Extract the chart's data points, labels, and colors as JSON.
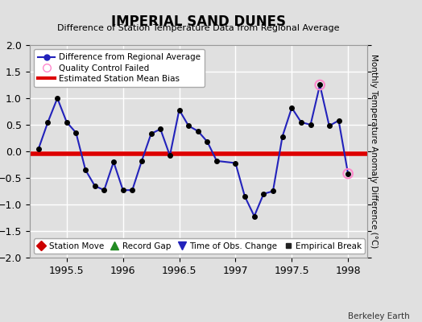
{
  "title": "IMPERIAL SAND DUNES",
  "subtitle": "Difference of Station Temperature Data from Regional Average",
  "ylabel": "Monthly Temperature Anomaly Difference (°C)",
  "xlim": [
    1995.17,
    1998.17
  ],
  "ylim": [
    -2,
    2
  ],
  "yticks": [
    -2,
    -1.5,
    -1,
    -0.5,
    0,
    0.5,
    1,
    1.5,
    2
  ],
  "xticks": [
    1995.5,
    1996.0,
    1996.5,
    1997.0,
    1997.5,
    1998.0
  ],
  "xtick_labels": [
    "1995.5",
    "1996",
    "1996.5",
    "1997",
    "1997.5",
    "1998"
  ],
  "background_color": "#e0e0e0",
  "grid_color": "#ffffff",
  "bias_line_y": -0.04,
  "bias_line_color": "#dd0000",
  "line_color": "#2222bb",
  "marker_color": "#000000",
  "qc_fail_color": "#ff88cc",
  "watermark": "Berkeley Earth",
  "x_data": [
    1995.25,
    1995.333,
    1995.417,
    1995.5,
    1995.583,
    1995.667,
    1995.75,
    1995.833,
    1995.917,
    1996.0,
    1996.083,
    1996.167,
    1996.25,
    1996.333,
    1996.417,
    1996.5,
    1996.583,
    1996.667,
    1996.75,
    1996.833,
    1997.0,
    1997.083,
    1997.167,
    1997.25,
    1997.333,
    1997.417,
    1997.5,
    1997.583,
    1997.667,
    1997.75,
    1997.833,
    1997.917,
    1998.0
  ],
  "y_data": [
    0.05,
    0.55,
    1.0,
    0.55,
    0.35,
    -0.35,
    -0.65,
    -0.73,
    -0.2,
    -0.73,
    -0.73,
    -0.18,
    0.33,
    0.42,
    -0.08,
    0.78,
    0.48,
    0.38,
    0.18,
    -0.18,
    -0.22,
    -0.85,
    -1.22,
    -0.8,
    -0.75,
    0.28,
    0.82,
    0.55,
    0.5,
    1.25,
    0.48,
    0.58,
    -0.42
  ],
  "qc_fail_indices": [
    29,
    32
  ],
  "legend2_items": [
    {
      "label": "Station Move",
      "color": "#cc0000",
      "marker": "D",
      "markersize": 6
    },
    {
      "label": "Record Gap",
      "color": "#228B22",
      "marker": "^",
      "markersize": 7
    },
    {
      "label": "Time of Obs. Change",
      "color": "#2222bb",
      "marker": "v",
      "markersize": 7
    },
    {
      "label": "Empirical Break",
      "color": "#222222",
      "marker": "s",
      "markersize": 5
    }
  ]
}
